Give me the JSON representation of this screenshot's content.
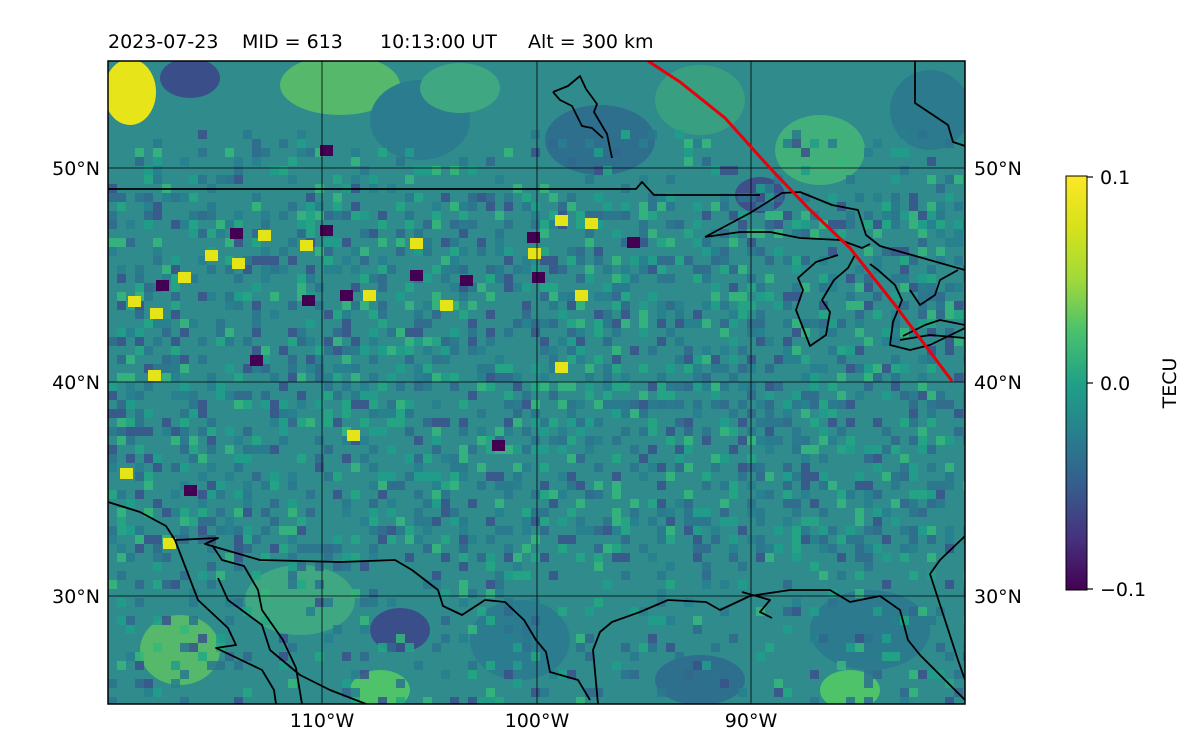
{
  "title": {
    "date": "2023-07-23",
    "mid": "MID = 613",
    "time": "10:13:00  UT",
    "alt": "Alt = 300 km"
  },
  "map": {
    "lat_labels": [
      "50°N",
      "40°N",
      "30°N"
    ],
    "lon_labels": [
      "110°W",
      "100°W",
      "90°W"
    ],
    "lon_range": [
      -120,
      -80
    ],
    "lat_range": [
      25,
      55
    ],
    "track_color": "#e8000b",
    "coastline_color": "#000000"
  },
  "colorbar": {
    "label": "TECU",
    "ticks": [
      "0.1",
      "0.0",
      "−0.1"
    ],
    "vmin": -0.1,
    "vmax": 0.1,
    "colormap": "viridis"
  }
}
